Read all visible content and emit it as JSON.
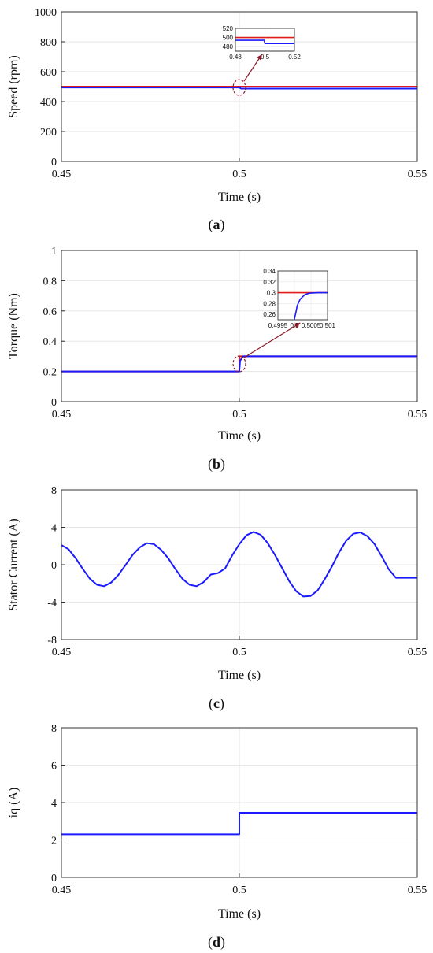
{
  "colors": {
    "reference": "#e01b1b",
    "measured": "#1a1aff",
    "zoom_marker": "#8b1a2b",
    "grid": "#e6e6e6"
  },
  "chart_data": [
    {
      "id": "a",
      "type": "line",
      "caption": {
        "open": "(",
        "letter": "a",
        "close": ")"
      },
      "xlabel": "Time (s)",
      "ylabel": "Speed (rpm)",
      "xlim": [
        0.45,
        0.55
      ],
      "ylim": [
        0,
        1000
      ],
      "xticks": [
        "0.45",
        "0.5",
        "0.55"
      ],
      "yticks": [
        "0",
        "200",
        "400",
        "600",
        "800",
        "1000"
      ],
      "grid": true,
      "series": [
        {
          "style": "reference",
          "x": [
            0.45,
            0.55
          ],
          "y": [
            500,
            500
          ]
        },
        {
          "style": "measured",
          "x": [
            0.45,
            0.5,
            0.5005,
            0.55
          ],
          "y": [
            494,
            494,
            487,
            487
          ]
        }
      ],
      "inset": {
        "xlim": [
          0.48,
          0.52
        ],
        "ylim": [
          470,
          520
        ],
        "xticks": [
          "0.48",
          "0.5",
          "0.52"
        ],
        "yticks": [
          "480",
          "500",
          "520"
        ],
        "zoom_at": [
          0.5,
          494
        ],
        "series": [
          {
            "style": "reference",
            "x": [
              0.48,
              0.52
            ],
            "y": [
              500,
              500
            ]
          },
          {
            "style": "measured",
            "x": [
              0.48,
              0.4995,
              0.5,
              0.52
            ],
            "y": [
              494,
              494,
              487,
              487
            ]
          }
        ]
      }
    },
    {
      "id": "b",
      "type": "line",
      "caption": {
        "open": "(",
        "letter": "b",
        "close": ")"
      },
      "xlabel": "Time (s)",
      "ylabel": "Torque (Nm)",
      "xlim": [
        0.45,
        0.55
      ],
      "ylim": [
        0,
        1
      ],
      "xticks": [
        "0.45",
        "0.5",
        "0.55"
      ],
      "yticks": [
        "0",
        "0.2",
        "0.4",
        "0.6",
        "0.8",
        "1"
      ],
      "grid": true,
      "series": [
        {
          "style": "reference",
          "x": [
            0.45,
            0.5,
            0.5,
            0.55
          ],
          "y": [
            0.2,
            0.2,
            0.3,
            0.3
          ]
        },
        {
          "style": "measured",
          "x": [
            0.45,
            0.5,
            0.5002,
            0.501,
            0.55
          ],
          "y": [
            0.2,
            0.2,
            0.27,
            0.3,
            0.3
          ]
        }
      ],
      "inset": {
        "xlim": [
          0.49945,
          0.50112
        ],
        "ylim": [
          0.25,
          0.34
        ],
        "xticks": [
          "0.4995",
          "0.5",
          "0.5005",
          "0.501"
        ],
        "yticks": [
          "0.26",
          "0.28",
          "0.3",
          "0.32",
          "0.34"
        ],
        "zoom_at": [
          0.5,
          0.25
        ],
        "series": [
          {
            "style": "reference",
            "x": [
              0.49945,
              0.5,
              0.5,
              0.50112
            ],
            "y": [
              0.3,
              0.3,
              0.3,
              0.3
            ]
          },
          {
            "style": "measured",
            "x": [
              0.5,
              0.50005,
              0.5001,
              0.5002,
              0.50035,
              0.5005,
              0.5008,
              0.50112
            ],
            "y": [
              0.25,
              0.262,
              0.276,
              0.288,
              0.296,
              0.299,
              0.3,
              0.3
            ]
          }
        ]
      }
    },
    {
      "id": "c",
      "type": "line",
      "caption": {
        "open": "(",
        "letter": "c",
        "close": ")"
      },
      "xlabel": "Time (s)",
      "ylabel": "Stator Current (A)",
      "xlim": [
        0.45,
        0.55
      ],
      "ylim": [
        -8,
        8
      ],
      "xticks": [
        "0.45",
        "0.5",
        "0.55"
      ],
      "yticks": [
        "-8",
        "-4",
        "0",
        "4",
        "8"
      ],
      "grid": true,
      "series": [
        {
          "style": "measured",
          "x": [
            0.45,
            0.452,
            0.454,
            0.456,
            0.458,
            0.46,
            0.462,
            0.464,
            0.466,
            0.468,
            0.47,
            0.472,
            0.474,
            0.476,
            0.478,
            0.48,
            0.482,
            0.484,
            0.486,
            0.488,
            0.49,
            0.492,
            0.494,
            0.496,
            0.498,
            0.5,
            0.502,
            0.504,
            0.506,
            0.508,
            0.51,
            0.512,
            0.514,
            0.516,
            0.518,
            0.52,
            0.522,
            0.524,
            0.526,
            0.528,
            0.53,
            0.532,
            0.534,
            0.536,
            0.538,
            0.54,
            0.542,
            0.544,
            0.546,
            0.548,
            0.55
          ],
          "y": [
            2.1,
            1.65,
            0.7,
            -0.45,
            -1.5,
            -2.15,
            -2.3,
            -1.9,
            -1.1,
            -0.05,
            1.05,
            1.85,
            2.3,
            2.2,
            1.6,
            0.7,
            -0.45,
            -1.5,
            -2.15,
            -2.3,
            -1.85,
            -1.05,
            -0.9,
            -0.4,
            1.0,
            2.2,
            3.15,
            3.5,
            3.2,
            2.3,
            1.05,
            -0.35,
            -1.75,
            -2.85,
            -3.4,
            -3.35,
            -2.75,
            -1.55,
            -0.2,
            1.3,
            2.55,
            3.3,
            3.45,
            3.05,
            2.2,
            0.9,
            -0.5,
            -1.4,
            -1.4,
            -1.4,
            -1.4
          ]
        }
      ]
    },
    {
      "id": "d",
      "type": "line",
      "caption": {
        "open": "(",
        "letter": "d",
        "close": ")"
      },
      "xlabel": "Time (s)",
      "ylabel": "iq (A)",
      "xlim": [
        0.45,
        0.55
      ],
      "ylim": [
        0,
        8
      ],
      "xticks": [
        "0.45",
        "0.5",
        "0.55"
      ],
      "yticks": [
        "0",
        "2",
        "4",
        "6",
        "8"
      ],
      "grid": true,
      "series": [
        {
          "style": "measured",
          "x": [
            0.45,
            0.5,
            0.5,
            0.55
          ],
          "y": [
            2.3,
            2.3,
            3.45,
            3.45
          ]
        }
      ]
    }
  ]
}
